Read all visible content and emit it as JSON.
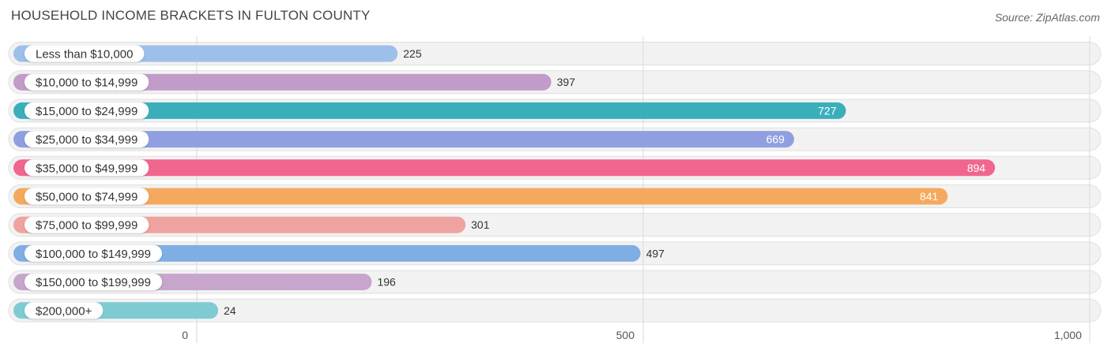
{
  "header": {
    "title": "HOUSEHOLD INCOME BRACKETS IN FULTON COUNTY",
    "source": "Source: ZipAtlas.com"
  },
  "chart_data": {
    "type": "bar",
    "orientation": "horizontal",
    "title": "HOUSEHOLD INCOME BRACKETS IN FULTON COUNTY",
    "categories": [
      "Less than $10,000",
      "$10,000 to $14,999",
      "$15,000 to $24,999",
      "$25,000 to $34,999",
      "$35,000 to $49,999",
      "$50,000 to $74,999",
      "$75,000 to $99,999",
      "$100,000 to $149,999",
      "$150,000 to $199,999",
      "$200,000+"
    ],
    "values": [
      225,
      397,
      727,
      669,
      894,
      841,
      301,
      497,
      196,
      24
    ],
    "colors": [
      "#9dbfea",
      "#c29cc8",
      "#3aafbb",
      "#8f9fe0",
      "#f0668f",
      "#f5a95e",
      "#eea3a0",
      "#7eaee4",
      "#c7a5cc",
      "#7fcbd3"
    ],
    "xlim": [
      0,
      1000
    ],
    "xticks": [
      0,
      500,
      1000
    ],
    "xtick_labels": [
      "0",
      "500",
      "1,000"
    ],
    "grid": true
  }
}
